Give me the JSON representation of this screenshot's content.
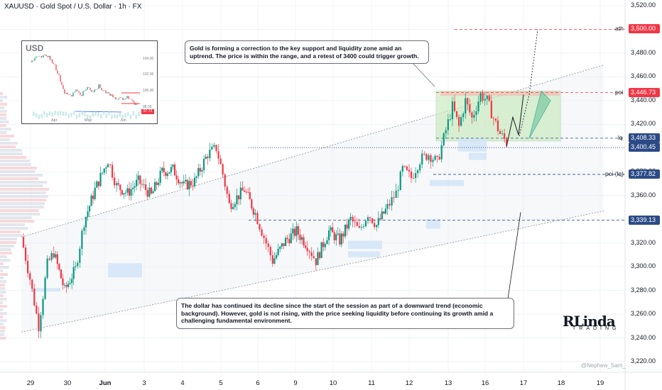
{
  "header": {
    "title": "XAUUSD · Gold Spot / U.S. Dollar · 1h · FX"
  },
  "annotations": {
    "gold_note": "Gold is forming a correction to the key support and liquidity zone amid an uptrend. The price is within the range, and a retest of 3400 could trigger growth.",
    "dollar_note": "The dollar has continued its decline since the start of the session as part of a downward trend (economic background). However, gold is not rising, with the price seeking liquidity before continuing its growth amid a challenging fundamental environment."
  },
  "branding": {
    "logo_main": "RLinda",
    "logo_sub": "TRADING",
    "author": "@Nephew_Sam_"
  },
  "colors": {
    "up": "#089981",
    "down": "#f23645",
    "level_blue": "#2962ff",
    "zone_green": "#c5e8b7",
    "zone_blue": "#cfe3f7",
    "ath_red": "#f23645",
    "level_navy": "#2b4a86"
  },
  "inset": {
    "title": "USD",
    "y_ticks": [
      "104.00",
      "102.00",
      "100.00",
      "98.00"
    ],
    "x_ticks": [
      "Apr",
      "May",
      "Jun"
    ],
    "last_value": "97.73"
  },
  "chart_data": {
    "type": "candlestick",
    "title": "XAUUSD · Gold Spot / U.S. Dollar · 1h · FX",
    "ylim": [
      3210,
      3525
    ],
    "y_ticks": [
      3220,
      3240,
      3260,
      3280,
      3300,
      3320,
      3340,
      3360,
      3380,
      3400,
      3420,
      3440,
      3460,
      3480,
      3500,
      3520
    ],
    "y_tick_labels": [
      "3,220.00",
      "3,240.00",
      "3,260.00",
      "3,280.00",
      "3,300.00",
      "3,320.00",
      "3,340.00",
      "3,360.00",
      "3,380.00",
      "3,400.00",
      "3,420.00",
      "3,440.00",
      "3,460.00",
      "3,480.00",
      "3,500.00",
      "3,520.00"
    ],
    "x_tick_labels": [
      "29",
      "30",
      "Jun",
      "3",
      "4",
      "5",
      "6",
      "9",
      "10",
      "11",
      "12",
      "13",
      "16",
      "17",
      "18",
      "19"
    ],
    "levels": [
      {
        "label": "ath",
        "value": 3500.0,
        "tag": "3,500.00",
        "style": "dashed",
        "color": "#f23645"
      },
      {
        "label": "poi",
        "value": 3446.73,
        "tag": "3,446.73",
        "style": "dashed",
        "color": "#f23645"
      },
      {
        "label": "lq",
        "value": 3408.33,
        "tag": "3,408.33",
        "style": "dashed",
        "color": "#2b4a86"
      },
      {
        "label": "",
        "value": 3400.45,
        "tag": "3,400.45",
        "style": "dotted",
        "color": "#2b4a86"
      },
      {
        "label": "poi (lq)",
        "value": 3377.82,
        "tag": "3,377.82",
        "style": "dashed",
        "color": "#2b4a86"
      },
      {
        "label": "",
        "value": 3339.13,
        "tag": "3,339.13",
        "style": "dashed",
        "color": "#2b4a86"
      }
    ],
    "price_path": [
      [
        0,
        3325
      ],
      [
        0.4,
        3290
      ],
      [
        0.8,
        3250
      ],
      [
        1.2,
        3302
      ],
      [
        1.5,
        3312
      ],
      [
        2.0,
        3280
      ],
      [
        2.5,
        3298
      ],
      [
        2.9,
        3338
      ],
      [
        3.4,
        3365
      ],
      [
        4.0,
        3390
      ],
      [
        4.4,
        3368
      ],
      [
        4.9,
        3362
      ],
      [
        5.4,
        3372
      ],
      [
        6.0,
        3360
      ],
      [
        6.5,
        3380
      ],
      [
        7.0,
        3382
      ],
      [
        7.5,
        3368
      ],
      [
        8.0,
        3372
      ],
      [
        8.6,
        3395
      ],
      [
        9.0,
        3400
      ],
      [
        9.3,
        3378
      ],
      [
        9.6,
        3352
      ],
      [
        10.3,
        3365
      ],
      [
        10.8,
        3345
      ],
      [
        11.2,
        3325
      ],
      [
        11.6,
        3305
      ],
      [
        12.2,
        3322
      ],
      [
        12.7,
        3330
      ],
      [
        13.2,
        3318
      ],
      [
        13.6,
        3305
      ],
      [
        14.2,
        3330
      ],
      [
        14.7,
        3322
      ],
      [
        15.2,
        3340
      ],
      [
        15.6,
        3330
      ],
      [
        16.0,
        3345
      ],
      [
        16.4,
        3335
      ],
      [
        16.9,
        3350
      ],
      [
        17.3,
        3362
      ],
      [
        17.6,
        3382
      ],
      [
        18.0,
        3375
      ],
      [
        18.4,
        3390
      ],
      [
        18.8,
        3395
      ],
      [
        19.2,
        3388
      ],
      [
        19.6,
        3415
      ],
      [
        19.9,
        3435
      ],
      [
        20.2,
        3418
      ],
      [
        20.5,
        3440
      ],
      [
        20.8,
        3425
      ],
      [
        21.2,
        3445
      ],
      [
        21.5,
        3440
      ],
      [
        21.8,
        3425
      ],
      [
        22.1,
        3412
      ],
      [
        22.4,
        3405
      ]
    ]
  }
}
